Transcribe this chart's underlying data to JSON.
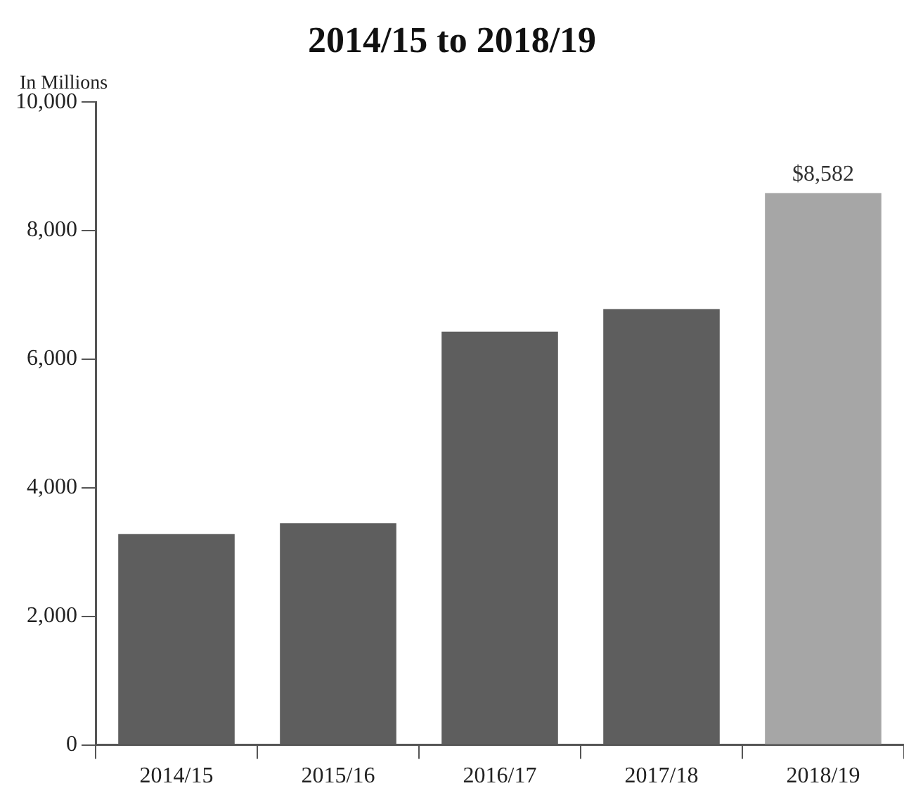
{
  "chart_data": {
    "type": "bar",
    "title": "2014/15 to 2018/19",
    "ylabel": "In Millions",
    "categories": [
      "2014/15",
      "2015/16",
      "2016/17",
      "2017/18",
      "2018/19"
    ],
    "values": [
      3280,
      3450,
      6430,
      6780,
      8582
    ],
    "colors": [
      "#5e5e5e",
      "#5e5e5e",
      "#5e5e5e",
      "#5e5e5e",
      "#a6a6a6"
    ],
    "value_labels": [
      null,
      null,
      null,
      null,
      "$8,582"
    ],
    "ylim": [
      0,
      10000
    ],
    "yticks": [
      0,
      {
        "value": 2000,
        "label": "2,000"
      },
      {
        "value": 4000,
        "label": "4,000"
      },
      {
        "value": 6000,
        "label": "6,000"
      },
      {
        "value": 8000,
        "label": "8,000"
      },
      {
        "value": 10000,
        "label": "10,000"
      }
    ],
    "grid": false,
    "legend": false
  }
}
